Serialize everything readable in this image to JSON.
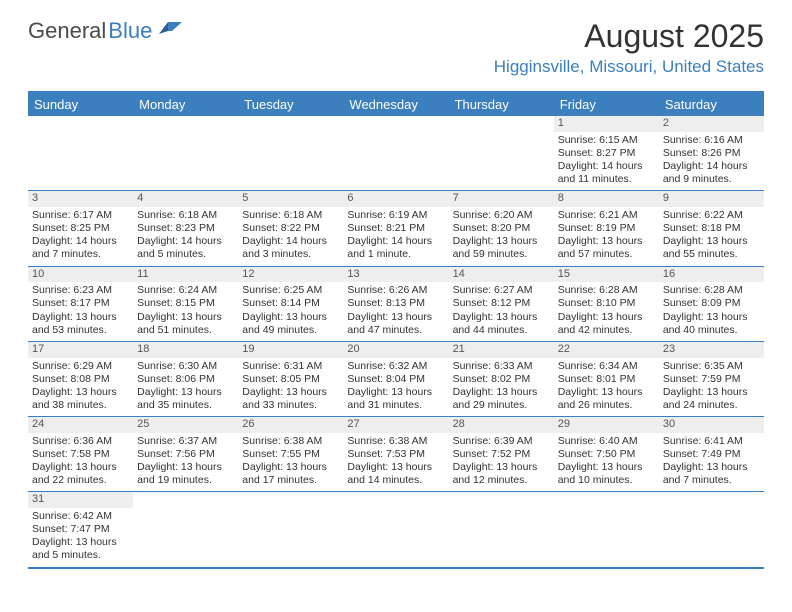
{
  "brand": {
    "part1": "General",
    "part2": "Blue"
  },
  "title": "August 2025",
  "location": "Higginsville, Missouri, United States",
  "colors": {
    "accent": "#3b7fbf",
    "daynum_bg": "#eeeeee",
    "text": "#333333",
    "bg": "#ffffff"
  },
  "weekdays": [
    "Sunday",
    "Monday",
    "Tuesday",
    "Wednesday",
    "Thursday",
    "Friday",
    "Saturday"
  ],
  "days": [
    {
      "num": 1,
      "sunrise": "6:15 AM",
      "sunset": "8:27 PM",
      "daylight": "14 hours and 11 minutes."
    },
    {
      "num": 2,
      "sunrise": "6:16 AM",
      "sunset": "8:26 PM",
      "daylight": "14 hours and 9 minutes."
    },
    {
      "num": 3,
      "sunrise": "6:17 AM",
      "sunset": "8:25 PM",
      "daylight": "14 hours and 7 minutes."
    },
    {
      "num": 4,
      "sunrise": "6:18 AM",
      "sunset": "8:23 PM",
      "daylight": "14 hours and 5 minutes."
    },
    {
      "num": 5,
      "sunrise": "6:18 AM",
      "sunset": "8:22 PM",
      "daylight": "14 hours and 3 minutes."
    },
    {
      "num": 6,
      "sunrise": "6:19 AM",
      "sunset": "8:21 PM",
      "daylight": "14 hours and 1 minute."
    },
    {
      "num": 7,
      "sunrise": "6:20 AM",
      "sunset": "8:20 PM",
      "daylight": "13 hours and 59 minutes."
    },
    {
      "num": 8,
      "sunrise": "6:21 AM",
      "sunset": "8:19 PM",
      "daylight": "13 hours and 57 minutes."
    },
    {
      "num": 9,
      "sunrise": "6:22 AM",
      "sunset": "8:18 PM",
      "daylight": "13 hours and 55 minutes."
    },
    {
      "num": 10,
      "sunrise": "6:23 AM",
      "sunset": "8:17 PM",
      "daylight": "13 hours and 53 minutes."
    },
    {
      "num": 11,
      "sunrise": "6:24 AM",
      "sunset": "8:15 PM",
      "daylight": "13 hours and 51 minutes."
    },
    {
      "num": 12,
      "sunrise": "6:25 AM",
      "sunset": "8:14 PM",
      "daylight": "13 hours and 49 minutes."
    },
    {
      "num": 13,
      "sunrise": "6:26 AM",
      "sunset": "8:13 PM",
      "daylight": "13 hours and 47 minutes."
    },
    {
      "num": 14,
      "sunrise": "6:27 AM",
      "sunset": "8:12 PM",
      "daylight": "13 hours and 44 minutes."
    },
    {
      "num": 15,
      "sunrise": "6:28 AM",
      "sunset": "8:10 PM",
      "daylight": "13 hours and 42 minutes."
    },
    {
      "num": 16,
      "sunrise": "6:28 AM",
      "sunset": "8:09 PM",
      "daylight": "13 hours and 40 minutes."
    },
    {
      "num": 17,
      "sunrise": "6:29 AM",
      "sunset": "8:08 PM",
      "daylight": "13 hours and 38 minutes."
    },
    {
      "num": 18,
      "sunrise": "6:30 AM",
      "sunset": "8:06 PM",
      "daylight": "13 hours and 35 minutes."
    },
    {
      "num": 19,
      "sunrise": "6:31 AM",
      "sunset": "8:05 PM",
      "daylight": "13 hours and 33 minutes."
    },
    {
      "num": 20,
      "sunrise": "6:32 AM",
      "sunset": "8:04 PM",
      "daylight": "13 hours and 31 minutes."
    },
    {
      "num": 21,
      "sunrise": "6:33 AM",
      "sunset": "8:02 PM",
      "daylight": "13 hours and 29 minutes."
    },
    {
      "num": 22,
      "sunrise": "6:34 AM",
      "sunset": "8:01 PM",
      "daylight": "13 hours and 26 minutes."
    },
    {
      "num": 23,
      "sunrise": "6:35 AM",
      "sunset": "7:59 PM",
      "daylight": "13 hours and 24 minutes."
    },
    {
      "num": 24,
      "sunrise": "6:36 AM",
      "sunset": "7:58 PM",
      "daylight": "13 hours and 22 minutes."
    },
    {
      "num": 25,
      "sunrise": "6:37 AM",
      "sunset": "7:56 PM",
      "daylight": "13 hours and 19 minutes."
    },
    {
      "num": 26,
      "sunrise": "6:38 AM",
      "sunset": "7:55 PM",
      "daylight": "13 hours and 17 minutes."
    },
    {
      "num": 27,
      "sunrise": "6:38 AM",
      "sunset": "7:53 PM",
      "daylight": "13 hours and 14 minutes."
    },
    {
      "num": 28,
      "sunrise": "6:39 AM",
      "sunset": "7:52 PM",
      "daylight": "13 hours and 12 minutes."
    },
    {
      "num": 29,
      "sunrise": "6:40 AM",
      "sunset": "7:50 PM",
      "daylight": "13 hours and 10 minutes."
    },
    {
      "num": 30,
      "sunrise": "6:41 AM",
      "sunset": "7:49 PM",
      "daylight": "13 hours and 7 minutes."
    },
    {
      "num": 31,
      "sunrise": "6:42 AM",
      "sunset": "7:47 PM",
      "daylight": "13 hours and 5 minutes."
    }
  ],
  "layout": {
    "start_weekday_index": 5,
    "labels": {
      "sunrise": "Sunrise: ",
      "sunset": "Sunset: ",
      "daylight": "Daylight: "
    }
  }
}
